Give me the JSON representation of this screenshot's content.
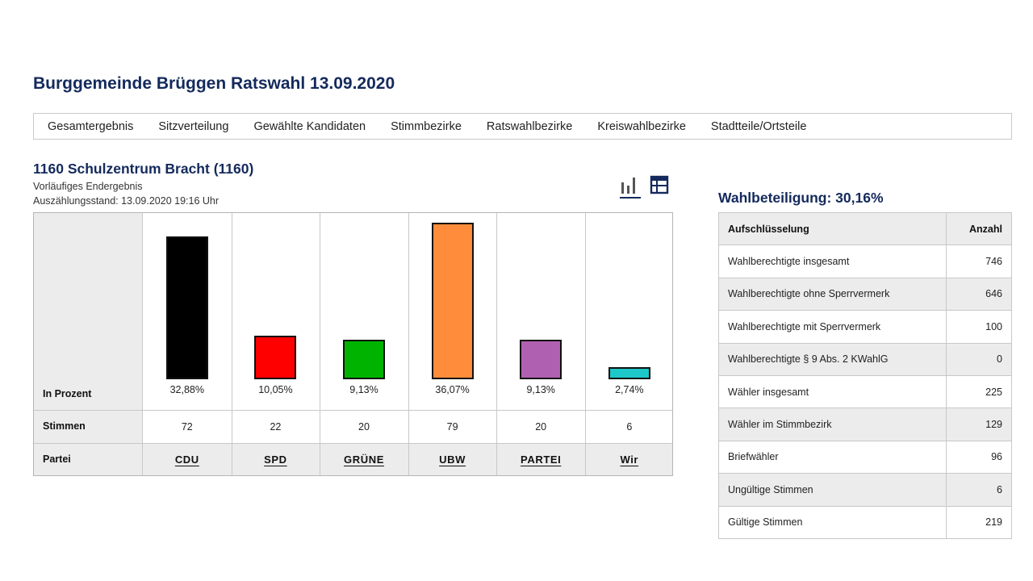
{
  "page": {
    "title": "Burggemeinde Brüggen Ratswahl 13.09.2020"
  },
  "nav": {
    "items": [
      "Gesamtergebnis",
      "Sitzverteilung",
      "Gewählte Kandidaten",
      "Stimmbezirke",
      "Ratswahlbezirke",
      "Kreiswahlbezirke",
      "Stadtteile/Ortsteile"
    ]
  },
  "district": {
    "title": "1160 Schulzentrum Bracht (1160)",
    "status": "Vorläufiges Endergebnis",
    "count_state": "Auszählungsstand: 13.09.2020 19:16 Uhr"
  },
  "view_toggle": {
    "chart_icon": "bar-chart-icon",
    "table_icon": "table-icon",
    "active": "chart"
  },
  "results": {
    "row_labels": {
      "percent": "In Prozent",
      "votes": "Stimmen",
      "party": "Partei"
    },
    "parties": [
      {
        "name": "CDU",
        "percent": 32.88,
        "percent_label": "32,88%",
        "votes": "72",
        "color": "#000000"
      },
      {
        "name": "SPD",
        "percent": 10.05,
        "percent_label": "10,05%",
        "votes": "22",
        "color": "#ff0000"
      },
      {
        "name": "GRÜNE",
        "percent": 9.13,
        "percent_label": "9,13%",
        "votes": "20",
        "color": "#00b300"
      },
      {
        "name": "UBW",
        "percent": 36.07,
        "percent_label": "36,07%",
        "votes": "79",
        "color": "#ff8c3a"
      },
      {
        "name": "PARTEI",
        "percent": 9.13,
        "percent_label": "9,13%",
        "votes": "20",
        "color": "#b060b0"
      },
      {
        "name": "Wir",
        "percent": 2.74,
        "percent_label": "2,74%",
        "votes": "6",
        "color": "#1ec8c8"
      }
    ]
  },
  "turnout": {
    "title": "Wahlbeteiligung: 30,16%",
    "header": {
      "label": "Aufschlüsselung",
      "value": "Anzahl"
    },
    "rows": [
      {
        "label": "Wahlberechtigte insgesamt",
        "value": "746"
      },
      {
        "label": "Wahlberechtigte ohne Sperrvermerk",
        "value": "646"
      },
      {
        "label": "Wahlberechtigte mit Sperrvermerk",
        "value": "100"
      },
      {
        "label": "Wahlberechtigte § 9 Abs. 2 KWahlG",
        "value": "0"
      },
      {
        "label": "Wähler insgesamt",
        "value": "225"
      },
      {
        "label": "Wähler im Stimmbezirk",
        "value": "129"
      },
      {
        "label": "Briefwähler",
        "value": "96"
      },
      {
        "label": "Ungültige Stimmen",
        "value": "6"
      },
      {
        "label": "Gültige Stimmen",
        "value": "219"
      }
    ]
  }
}
